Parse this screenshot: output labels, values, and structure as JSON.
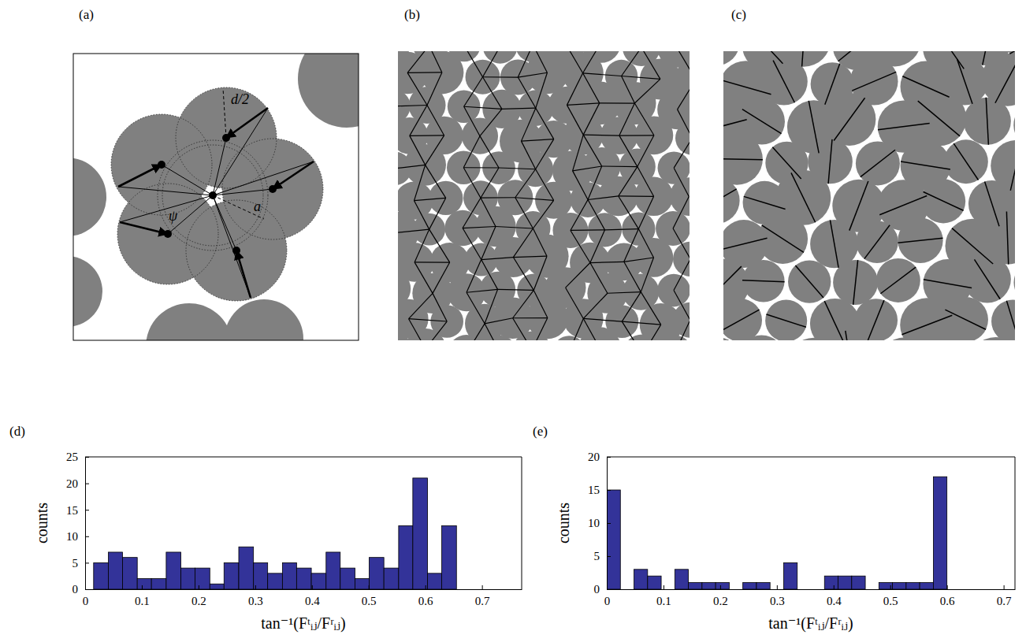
{
  "chart_data": [
    {
      "type": "histogram",
      "panel_label": "(d)",
      "x_label": "tan⁻¹(Fᵗᵢⱼ/Fʳᵢⱼ)",
      "y_label": "counts",
      "bins": [
        0.015,
        0.041,
        0.066,
        0.092,
        0.117,
        0.143,
        0.169,
        0.194,
        0.22,
        0.245,
        0.271,
        0.297,
        0.322,
        0.348,
        0.373,
        0.399,
        0.425,
        0.45,
        0.476,
        0.501,
        0.527,
        0.553,
        0.578,
        0.604,
        0.629,
        0.655
      ],
      "values": [
        5,
        7,
        6,
        2,
        2,
        7,
        4,
        4,
        1,
        5,
        8,
        5,
        3,
        5,
        4,
        3,
        7,
        4,
        2,
        6,
        4,
        12,
        21,
        3,
        12
      ],
      "color": "#333399",
      "xlim": [
        0,
        0.77
      ],
      "xticks": [
        0,
        0.1,
        0.2,
        0.3,
        0.4,
        0.5,
        0.6,
        0.7
      ],
      "ylim": [
        0,
        25
      ],
      "yticks": [
        0,
        5,
        10,
        15,
        20,
        25
      ]
    },
    {
      "type": "histogram",
      "panel_label": "(e)",
      "x_label": "tan⁻¹(Fᵗᵢⱼ/Fʳᵢⱼ)",
      "y_label": "counts",
      "bins": [
        0,
        0.024,
        0.048,
        0.072,
        0.096,
        0.12,
        0.144,
        0.168,
        0.192,
        0.216,
        0.24,
        0.264,
        0.288,
        0.312,
        0.336,
        0.36,
        0.384,
        0.408,
        0.432,
        0.456,
        0.48,
        0.504,
        0.528,
        0.552,
        0.576,
        0.6
      ],
      "values": [
        15,
        0,
        3,
        2,
        0,
        3,
        1,
        1,
        1,
        0,
        1,
        1,
        0,
        4,
        0,
        0,
        2,
        2,
        2,
        0,
        1,
        1,
        1,
        1,
        17
      ],
      "color": "#333399",
      "xlim": [
        0,
        0.72
      ],
      "xticks": [
        0,
        0.1,
        0.2,
        0.3,
        0.4,
        0.5,
        0.6,
        0.7
      ],
      "ylim": [
        0,
        20
      ],
      "yticks": [
        0,
        5,
        10,
        15,
        20
      ]
    }
  ],
  "diagrams": [
    {
      "label": "(a)",
      "annotations": [
        "d/2",
        "a",
        "ψ"
      ]
    },
    {
      "label": "(b)"
    },
    {
      "label": "(c)"
    }
  ]
}
